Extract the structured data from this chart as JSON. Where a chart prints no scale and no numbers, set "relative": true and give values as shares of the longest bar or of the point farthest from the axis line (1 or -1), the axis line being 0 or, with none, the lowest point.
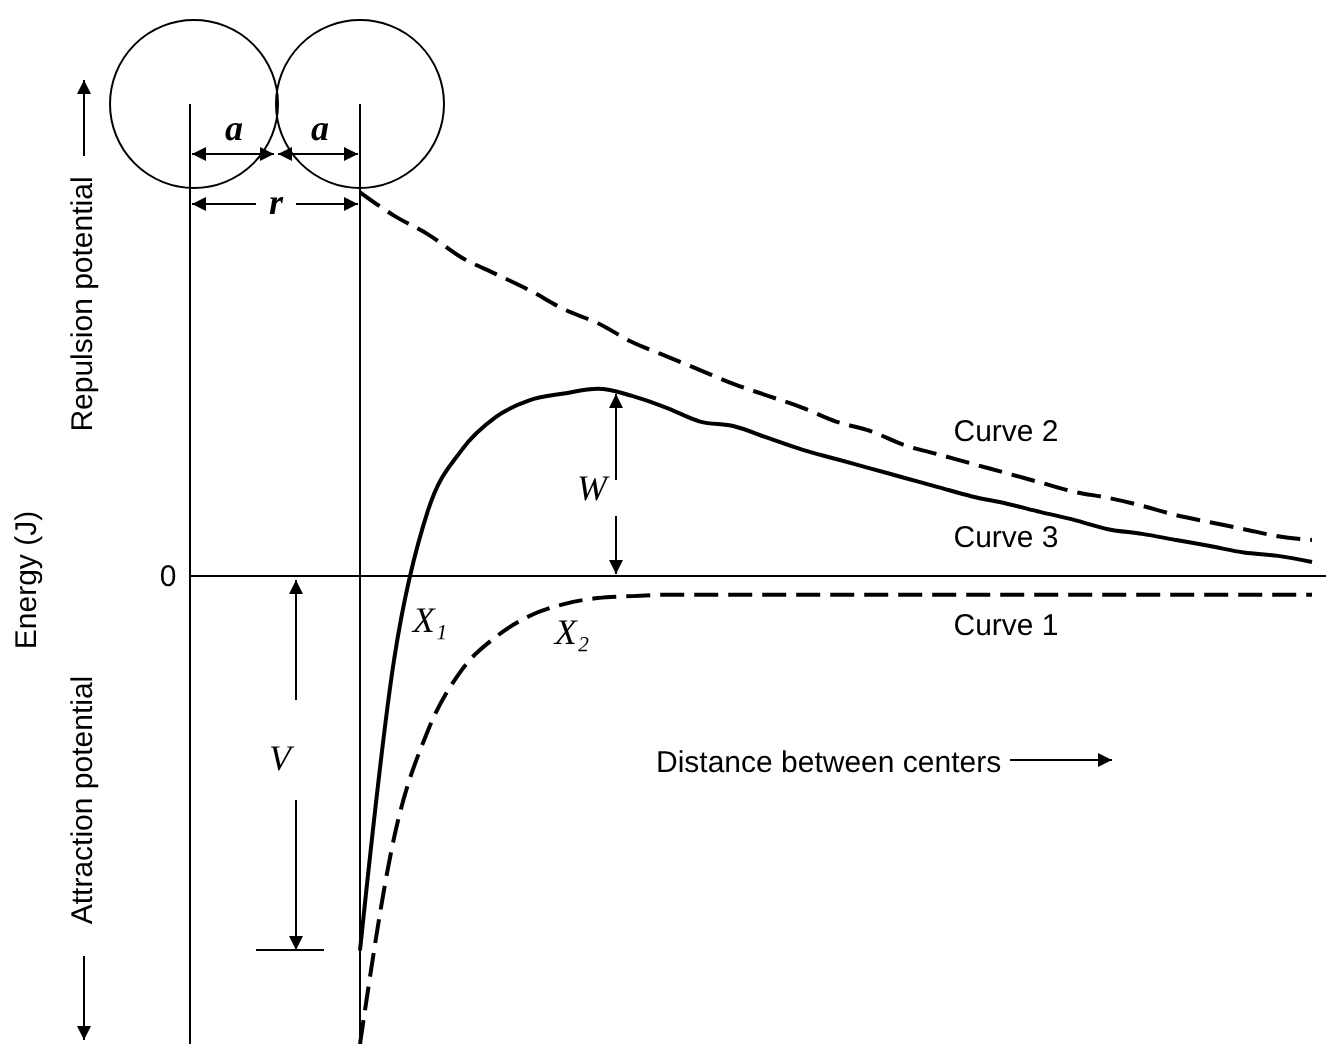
{
  "chart_data": {
    "type": "line",
    "relative": true,
    "ylabel": "Energy (J)",
    "categories": [
      null,
      null,
      null,
      null,
      null,
      null,
      null,
      null,
      null,
      null,
      null,
      null,
      null,
      null,
      null,
      null,
      null,
      null,
      null,
      null,
      null,
      null,
      null,
      null,
      null,
      null,
      null,
      null,
      null,
      null,
      null,
      null,
      null,
      null
    ],
    "series": [
      {
        "name": "Curve 1",
        "color": "#000000",
        "line_style": "dashed",
        "values": [
          null,
          null,
          null,
          null,
          null,
          -1.0,
          -0.56,
          -0.33,
          -0.2,
          -0.13,
          -0.085,
          -0.06,
          -0.047,
          -0.043,
          -0.04,
          -0.04,
          -0.04,
          -0.04,
          -0.04,
          -0.04,
          -0.04,
          -0.04,
          -0.04,
          -0.04,
          -0.04,
          -0.04,
          -0.04,
          -0.04,
          -0.04,
          -0.04,
          -0.04,
          -0.04,
          -0.04,
          -0.04
        ]
      },
      {
        "name": "Curve 2",
        "color": "#000000",
        "line_style": "dashed",
        "values": [
          null,
          null,
          null,
          null,
          null,
          0.82,
          0.77,
          0.73,
          0.68,
          0.645,
          0.61,
          0.57,
          0.54,
          0.5,
          0.47,
          0.44,
          0.41,
          0.385,
          0.36,
          0.33,
          0.31,
          0.28,
          0.26,
          0.24,
          0.22,
          0.2,
          0.18,
          0.167,
          0.15,
          0.13,
          0.115,
          0.1,
          0.085,
          0.077
        ]
      },
      {
        "name": "Curve 3",
        "color": "#000000",
        "line_style": "solid",
        "values": [
          null,
          null,
          null,
          null,
          null,
          -0.8,
          -0.18,
          0.14,
          0.27,
          0.34,
          0.376,
          0.39,
          0.4,
          0.385,
          0.36,
          0.33,
          0.32,
          0.295,
          0.27,
          0.25,
          0.23,
          0.21,
          0.19,
          0.17,
          0.155,
          0.137,
          0.12,
          0.1,
          0.09,
          0.077,
          0.064,
          0.05,
          0.043,
          0.03
        ]
      }
    ],
    "marker": "none",
    "annotations": [
      "0",
      "a",
      "a",
      "r",
      "V",
      "W",
      "X₁",
      "X₂",
      "Distance between centers",
      "Repulsion potential",
      "Attraction potential"
    ]
  }
}
